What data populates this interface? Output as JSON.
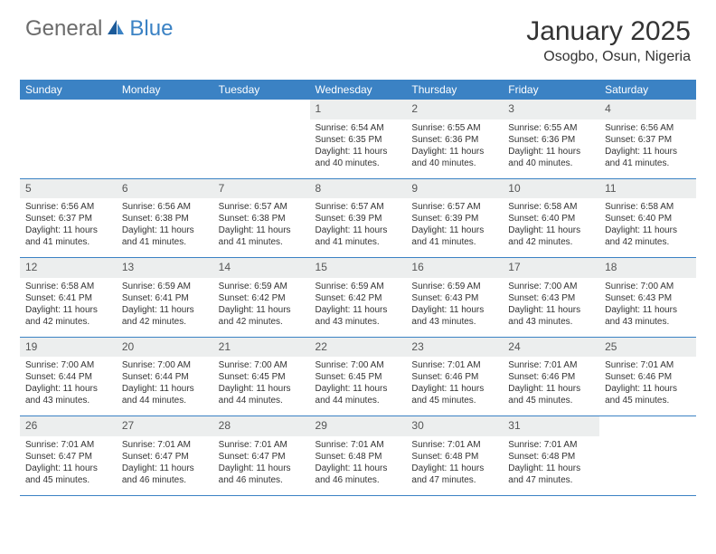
{
  "logo": {
    "part1": "General",
    "part2": "Blue"
  },
  "title": "January 2025",
  "location": "Osogbo, Osun, Nigeria",
  "colors": {
    "accent": "#3b82c4",
    "header_bg": "#3b82c4",
    "daynum_bg": "#eceeee",
    "text": "#333333"
  },
  "days_of_week": [
    "Sunday",
    "Monday",
    "Tuesday",
    "Wednesday",
    "Thursday",
    "Friday",
    "Saturday"
  ],
  "weeks": [
    {
      "nums": [
        "",
        "",
        "",
        "1",
        "2",
        "3",
        "4"
      ],
      "cells": [
        null,
        null,
        null,
        {
          "sr": "Sunrise: 6:54 AM",
          "ss": "Sunset: 6:35 PM",
          "d1": "Daylight: 11 hours",
          "d2": "and 40 minutes."
        },
        {
          "sr": "Sunrise: 6:55 AM",
          "ss": "Sunset: 6:36 PM",
          "d1": "Daylight: 11 hours",
          "d2": "and 40 minutes."
        },
        {
          "sr": "Sunrise: 6:55 AM",
          "ss": "Sunset: 6:36 PM",
          "d1": "Daylight: 11 hours",
          "d2": "and 40 minutes."
        },
        {
          "sr": "Sunrise: 6:56 AM",
          "ss": "Sunset: 6:37 PM",
          "d1": "Daylight: 11 hours",
          "d2": "and 41 minutes."
        }
      ]
    },
    {
      "nums": [
        "5",
        "6",
        "7",
        "8",
        "9",
        "10",
        "11"
      ],
      "cells": [
        {
          "sr": "Sunrise: 6:56 AM",
          "ss": "Sunset: 6:37 PM",
          "d1": "Daylight: 11 hours",
          "d2": "and 41 minutes."
        },
        {
          "sr": "Sunrise: 6:56 AM",
          "ss": "Sunset: 6:38 PM",
          "d1": "Daylight: 11 hours",
          "d2": "and 41 minutes."
        },
        {
          "sr": "Sunrise: 6:57 AM",
          "ss": "Sunset: 6:38 PM",
          "d1": "Daylight: 11 hours",
          "d2": "and 41 minutes."
        },
        {
          "sr": "Sunrise: 6:57 AM",
          "ss": "Sunset: 6:39 PM",
          "d1": "Daylight: 11 hours",
          "d2": "and 41 minutes."
        },
        {
          "sr": "Sunrise: 6:57 AM",
          "ss": "Sunset: 6:39 PM",
          "d1": "Daylight: 11 hours",
          "d2": "and 41 minutes."
        },
        {
          "sr": "Sunrise: 6:58 AM",
          "ss": "Sunset: 6:40 PM",
          "d1": "Daylight: 11 hours",
          "d2": "and 42 minutes."
        },
        {
          "sr": "Sunrise: 6:58 AM",
          "ss": "Sunset: 6:40 PM",
          "d1": "Daylight: 11 hours",
          "d2": "and 42 minutes."
        }
      ]
    },
    {
      "nums": [
        "12",
        "13",
        "14",
        "15",
        "16",
        "17",
        "18"
      ],
      "cells": [
        {
          "sr": "Sunrise: 6:58 AM",
          "ss": "Sunset: 6:41 PM",
          "d1": "Daylight: 11 hours",
          "d2": "and 42 minutes."
        },
        {
          "sr": "Sunrise: 6:59 AM",
          "ss": "Sunset: 6:41 PM",
          "d1": "Daylight: 11 hours",
          "d2": "and 42 minutes."
        },
        {
          "sr": "Sunrise: 6:59 AM",
          "ss": "Sunset: 6:42 PM",
          "d1": "Daylight: 11 hours",
          "d2": "and 42 minutes."
        },
        {
          "sr": "Sunrise: 6:59 AM",
          "ss": "Sunset: 6:42 PM",
          "d1": "Daylight: 11 hours",
          "d2": "and 43 minutes."
        },
        {
          "sr": "Sunrise: 6:59 AM",
          "ss": "Sunset: 6:43 PM",
          "d1": "Daylight: 11 hours",
          "d2": "and 43 minutes."
        },
        {
          "sr": "Sunrise: 7:00 AM",
          "ss": "Sunset: 6:43 PM",
          "d1": "Daylight: 11 hours",
          "d2": "and 43 minutes."
        },
        {
          "sr": "Sunrise: 7:00 AM",
          "ss": "Sunset: 6:43 PM",
          "d1": "Daylight: 11 hours",
          "d2": "and 43 minutes."
        }
      ]
    },
    {
      "nums": [
        "19",
        "20",
        "21",
        "22",
        "23",
        "24",
        "25"
      ],
      "cells": [
        {
          "sr": "Sunrise: 7:00 AM",
          "ss": "Sunset: 6:44 PM",
          "d1": "Daylight: 11 hours",
          "d2": "and 43 minutes."
        },
        {
          "sr": "Sunrise: 7:00 AM",
          "ss": "Sunset: 6:44 PM",
          "d1": "Daylight: 11 hours",
          "d2": "and 44 minutes."
        },
        {
          "sr": "Sunrise: 7:00 AM",
          "ss": "Sunset: 6:45 PM",
          "d1": "Daylight: 11 hours",
          "d2": "and 44 minutes."
        },
        {
          "sr": "Sunrise: 7:00 AM",
          "ss": "Sunset: 6:45 PM",
          "d1": "Daylight: 11 hours",
          "d2": "and 44 minutes."
        },
        {
          "sr": "Sunrise: 7:01 AM",
          "ss": "Sunset: 6:46 PM",
          "d1": "Daylight: 11 hours",
          "d2": "and 45 minutes."
        },
        {
          "sr": "Sunrise: 7:01 AM",
          "ss": "Sunset: 6:46 PM",
          "d1": "Daylight: 11 hours",
          "d2": "and 45 minutes."
        },
        {
          "sr": "Sunrise: 7:01 AM",
          "ss": "Sunset: 6:46 PM",
          "d1": "Daylight: 11 hours",
          "d2": "and 45 minutes."
        }
      ]
    },
    {
      "nums": [
        "26",
        "27",
        "28",
        "29",
        "30",
        "31",
        ""
      ],
      "cells": [
        {
          "sr": "Sunrise: 7:01 AM",
          "ss": "Sunset: 6:47 PM",
          "d1": "Daylight: 11 hours",
          "d2": "and 45 minutes."
        },
        {
          "sr": "Sunrise: 7:01 AM",
          "ss": "Sunset: 6:47 PM",
          "d1": "Daylight: 11 hours",
          "d2": "and 46 minutes."
        },
        {
          "sr": "Sunrise: 7:01 AM",
          "ss": "Sunset: 6:47 PM",
          "d1": "Daylight: 11 hours",
          "d2": "and 46 minutes."
        },
        {
          "sr": "Sunrise: 7:01 AM",
          "ss": "Sunset: 6:48 PM",
          "d1": "Daylight: 11 hours",
          "d2": "and 46 minutes."
        },
        {
          "sr": "Sunrise: 7:01 AM",
          "ss": "Sunset: 6:48 PM",
          "d1": "Daylight: 11 hours",
          "d2": "and 47 minutes."
        },
        {
          "sr": "Sunrise: 7:01 AM",
          "ss": "Sunset: 6:48 PM",
          "d1": "Daylight: 11 hours",
          "d2": "and 47 minutes."
        },
        null
      ]
    }
  ]
}
